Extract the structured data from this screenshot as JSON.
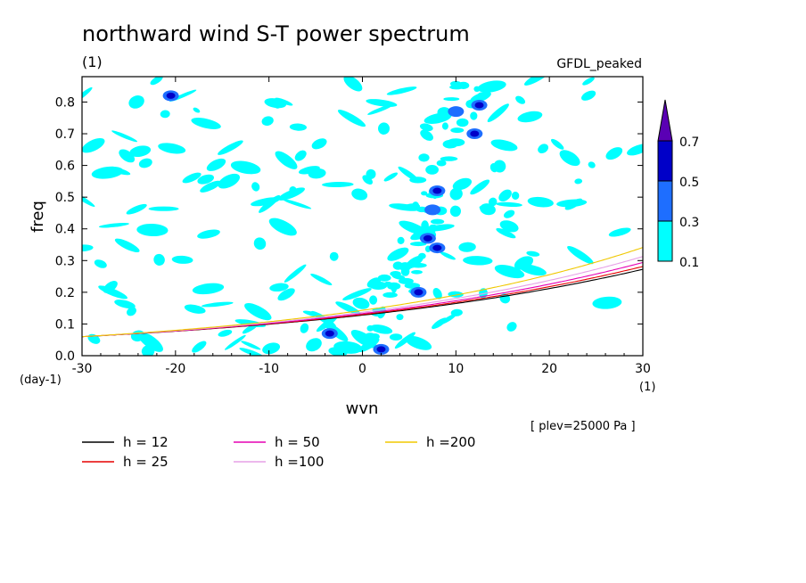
{
  "title": "northward wind S-T power spectrum",
  "subtitle_left": "(1)",
  "subtitle_right": "GFDL_peaked",
  "footnote": "[ plev=25000 Pa ]",
  "chart_data": {
    "type": "heatmap",
    "xlabel": "wvn",
    "ylabel": "freq",
    "x_unit": "(1)",
    "y_unit": "(day-1)",
    "xlim": [
      -30,
      30
    ],
    "ylim": [
      0,
      0.88
    ],
    "xticks": [
      -30,
      -20,
      -10,
      0,
      10,
      20,
      30
    ],
    "xtick_labels": [
      "-30",
      "-20",
      "-10",
      "0",
      "10",
      "20",
      "30"
    ],
    "yticks": [
      0,
      0.1,
      0.2,
      0.3,
      0.4,
      0.5,
      0.6,
      0.7,
      0.8
    ],
    "ytick_labels": [
      "0.0",
      "0.1",
      "0.2",
      "0.3",
      "0.4",
      "0.5",
      "0.6",
      "0.7",
      "0.8"
    ],
    "colorbar": {
      "levels": [
        0.1,
        0.3,
        0.5,
        0.7
      ],
      "level_labels": [
        "0.1",
        "0.3",
        "0.5",
        "0.7"
      ],
      "colors": [
        "#00ffff",
        "#1e6eff",
        "#0000c8",
        "#5a00b4"
      ]
    },
    "dispersion_curves": [
      {
        "name": "h = 12",
        "h": 12,
        "color": "#000000"
      },
      {
        "name": "h = 25",
        "h": 25,
        "color": "#e60000"
      },
      {
        "name": "h = 50",
        "h": 50,
        "color": "#e600b4"
      },
      {
        "name": "h =100",
        "h": 100,
        "color": "#e6a0e6"
      },
      {
        "name": "h =200",
        "h": 200,
        "color": "#f0c800"
      }
    ],
    "high_power_features": [
      {
        "wvn": 2,
        "freq": 0.02,
        "level": 0.5
      },
      {
        "wvn": -3.5,
        "freq": 0.07,
        "level": 0.5
      },
      {
        "wvn": 6,
        "freq": 0.2,
        "level": 0.5
      },
      {
        "wvn": 8,
        "freq": 0.34,
        "level": 0.5
      },
      {
        "wvn": 7,
        "freq": 0.37,
        "level": 0.5
      },
      {
        "wvn": 8,
        "freq": 0.52,
        "level": 0.5
      },
      {
        "wvn": 7.5,
        "freq": 0.46,
        "level": 0.3
      },
      {
        "wvn": 12,
        "freq": 0.7,
        "level": 0.5
      },
      {
        "wvn": 12.5,
        "freq": 0.79,
        "level": 0.5
      },
      {
        "wvn": 10,
        "freq": 0.77,
        "level": 0.3
      },
      {
        "wvn": -20.5,
        "freq": 0.82,
        "level": 0.5
      }
    ]
  }
}
